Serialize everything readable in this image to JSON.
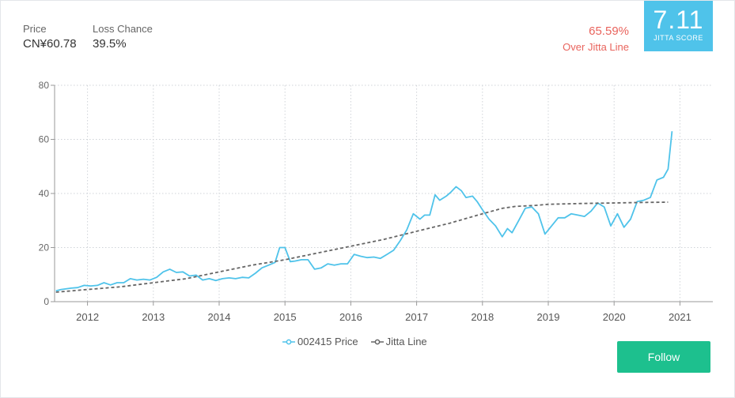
{
  "stats": {
    "price_label": "Price",
    "price_value": "CN¥60.78",
    "loss_label": "Loss Chance",
    "loss_value": "39.5%"
  },
  "line_status": {
    "percent": "65.59%",
    "text": "Over Jitta Line"
  },
  "score": {
    "value": "7.11",
    "label": "JITTA SCORE",
    "color": "#4fc3ea"
  },
  "follow_button": {
    "label": "Follow",
    "color": "#1dc08e"
  },
  "colors": {
    "price_line": "#4fc3ea",
    "jitta_line": "#666666",
    "over_text": "#e9645d"
  },
  "chart_data": {
    "type": "line",
    "title": "",
    "xlabel": "",
    "ylabel": "",
    "ylim": [
      0,
      80
    ],
    "xlim": [
      2011.5,
      2021.5
    ],
    "y_ticks": [
      "0",
      "20",
      "40",
      "60",
      "80"
    ],
    "x_ticks": [
      "2012",
      "2013",
      "2014",
      "2015",
      "2016",
      "2017",
      "2018",
      "2019",
      "2020",
      "2021"
    ],
    "grid": true,
    "legend_position": "bottom-center",
    "series": [
      {
        "name": "002415 Price",
        "marker": "circle",
        "x": [
          2011.52,
          2011.6,
          2011.75,
          2011.85,
          2011.95,
          2012.05,
          2012.15,
          2012.25,
          2012.35,
          2012.45,
          2012.55,
          2012.65,
          2012.75,
          2012.85,
          2012.95,
          2013.05,
          2013.15,
          2013.25,
          2013.35,
          2013.45,
          2013.55,
          2013.65,
          2013.75,
          2013.85,
          2013.95,
          2014.05,
          2014.15,
          2014.25,
          2014.35,
          2014.45,
          2014.55,
          2014.65,
          2014.75,
          2014.85,
          2014.92,
          2015.0,
          2015.08,
          2015.15,
          2015.25,
          2015.35,
          2015.45,
          2015.55,
          2015.65,
          2015.75,
          2015.85,
          2015.95,
          2016.05,
          2016.15,
          2016.25,
          2016.35,
          2016.45,
          2016.55,
          2016.65,
          2016.75,
          2016.85,
          2016.95,
          2017.05,
          2017.12,
          2017.2,
          2017.28,
          2017.35,
          2017.45,
          2017.52,
          2017.6,
          2017.68,
          2017.75,
          2017.85,
          2017.92,
          2018.0,
          2018.1,
          2018.2,
          2018.3,
          2018.38,
          2018.45,
          2018.55,
          2018.65,
          2018.75,
          2018.85,
          2018.95,
          2019.05,
          2019.15,
          2019.25,
          2019.35,
          2019.45,
          2019.55,
          2019.65,
          2019.75,
          2019.85,
          2019.95,
          2020.05,
          2020.15,
          2020.25,
          2020.35,
          2020.45,
          2020.55,
          2020.65,
          2020.75,
          2020.82,
          2020.88
        ],
        "values": [
          4,
          4.5,
          5,
          5.2,
          6,
          5.8,
          6,
          7,
          6.2,
          7,
          7,
          8.5,
          8,
          8.3,
          8,
          9,
          11,
          12,
          10.8,
          11,
          9.5,
          9.8,
          8,
          8.5,
          7.8,
          8.5,
          8.8,
          8.5,
          9,
          8.8,
          10.5,
          12.5,
          13.5,
          14.5,
          20,
          20,
          14.8,
          15,
          15.5,
          15.5,
          12,
          12.5,
          14,
          13.5,
          14,
          14,
          17.5,
          16.8,
          16.3,
          16.5,
          16,
          17.5,
          19,
          22.5,
          26.5,
          32.5,
          30.5,
          32,
          32,
          39.5,
          37.5,
          39,
          40.5,
          42.5,
          41,
          38.5,
          39,
          37,
          34,
          30.5,
          28,
          24,
          27,
          25.5,
          30,
          34.5,
          35,
          32.5,
          25,
          28,
          31,
          31,
          32.5,
          32,
          31.5,
          33.5,
          36.5,
          35,
          28,
          32.5,
          27.5,
          30.5,
          37,
          37.5,
          38.5,
          45,
          46,
          49,
          63
        ]
      },
      {
        "name": "Jitta Line",
        "marker": "circle",
        "x": [
          2011.52,
          2012.0,
          2012.5,
          2013.0,
          2013.5,
          2014.0,
          2014.5,
          2015.0,
          2015.5,
          2016.0,
          2016.5,
          2017.0,
          2017.5,
          2018.0,
          2018.3,
          2018.5,
          2018.8,
          2019.0,
          2019.5,
          2020.0,
          2020.5,
          2020.82
        ],
        "values": [
          3.5,
          4.5,
          5.5,
          7,
          8.5,
          11,
          13.5,
          15.5,
          18,
          20.5,
          23,
          26,
          29,
          32.5,
          34.5,
          35.2,
          35.6,
          36,
          36.3,
          36.5,
          36.7,
          36.8
        ]
      }
    ]
  }
}
